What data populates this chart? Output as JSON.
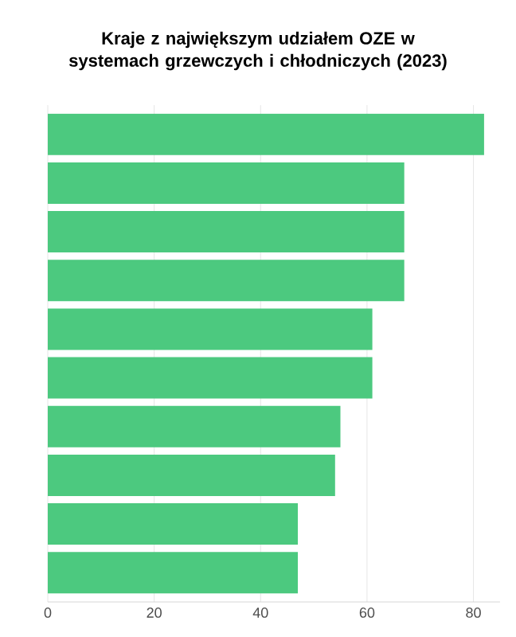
{
  "chart_data": {
    "type": "bar",
    "orientation": "horizontal",
    "title": "Kraje z największym udziałem OZE w systemach grzewczych i chłodniczych (2023)",
    "categories": [
      null,
      null,
      null,
      null,
      null,
      null,
      null,
      null,
      null,
      null
    ],
    "values": [
      82,
      67,
      67,
      67,
      61,
      61,
      55,
      54,
      47,
      47
    ],
    "color": "#4cc97f",
    "xlim": [
      0,
      85
    ],
    "xticks": [
      0,
      20,
      40,
      60,
      80
    ],
    "grid": "x"
  }
}
